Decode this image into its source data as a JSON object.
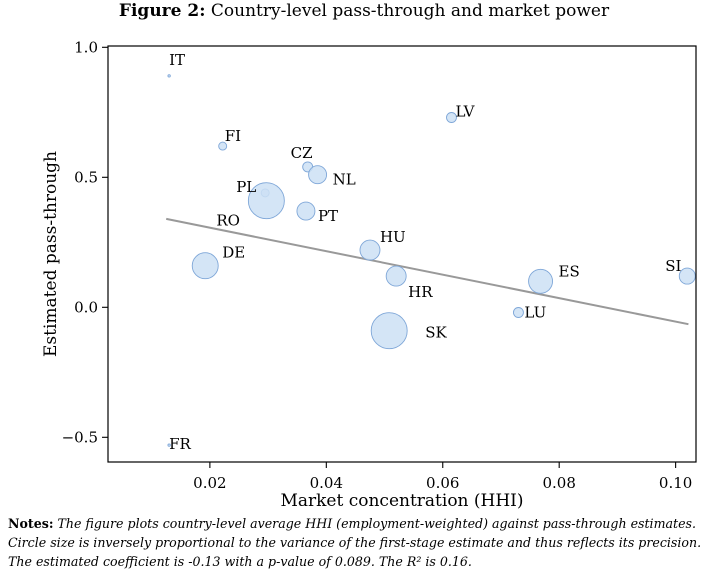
{
  "figure": {
    "title_prefix": "Figure 2:",
    "title": "Country-level pass-through and market power"
  },
  "chart_data": {
    "type": "scatter",
    "xlabel": "Market concentration (HHI)",
    "ylabel": "Estimated pass-through",
    "xlim": [
      0.0025,
      0.1035
    ],
    "ylim": [
      -0.595,
      1.005
    ],
    "xticks": [
      0.02,
      0.04,
      0.06,
      0.08,
      0.1
    ],
    "xtick_labels": [
      "0.02",
      "0.04",
      "0.06",
      "0.08",
      "0.10"
    ],
    "yticks": [
      1.0,
      0.5,
      0.0,
      -0.5
    ],
    "ytick_labels": [
      "1.0",
      "0.5",
      "0.0",
      "−0.5"
    ],
    "grid": false,
    "point_color": "#cde1f5",
    "point_edge": "#7fa7d8",
    "fit_color": "#999999",
    "fit_line": {
      "x": [
        0.0125,
        0.1022
      ],
      "y": [
        0.34,
        -0.065
      ]
    },
    "points": [
      {
        "label": "IT",
        "x": 0.013,
        "y": 0.89,
        "size": 1
      },
      {
        "label": "FI",
        "x": 0.0222,
        "y": 0.62,
        "size": 4
      },
      {
        "label": "CZ",
        "x": 0.0368,
        "y": 0.54,
        "size": 5
      },
      {
        "label": "NL",
        "x": 0.0385,
        "y": 0.51,
        "size": 9
      },
      {
        "label": "PL",
        "x": 0.0295,
        "y": 0.44,
        "size": 4
      },
      {
        "label": "RO",
        "x": 0.0297,
        "y": 0.41,
        "size": 18
      },
      {
        "label": "PT",
        "x": 0.0365,
        "y": 0.37,
        "size": 9
      },
      {
        "label": "LV",
        "x": 0.0615,
        "y": 0.73,
        "size": 5
      },
      {
        "label": "HU",
        "x": 0.0475,
        "y": 0.22,
        "size": 10
      },
      {
        "label": "DE",
        "x": 0.0192,
        "y": 0.16,
        "size": 13
      },
      {
        "label": "HR",
        "x": 0.052,
        "y": 0.12,
        "size": 10
      },
      {
        "label": "ES",
        "x": 0.0768,
        "y": 0.1,
        "size": 12
      },
      {
        "label": "SI",
        "x": 0.102,
        "y": 0.12,
        "size": 8
      },
      {
        "label": "LU",
        "x": 0.073,
        "y": -0.02,
        "size": 5
      },
      {
        "label": "SK",
        "x": 0.0508,
        "y": -0.09,
        "size": 18
      },
      {
        "label": "FR",
        "x": 0.013,
        "y": -0.53,
        "size": 1
      }
    ]
  },
  "notes": {
    "label": "Notes:",
    "text": "The figure plots country-level average HHI (employment-weighted) against pass-through estimates. Circle size is inversely proportional to the variance of the first-stage estimate and thus reflects its precision. The estimated coefficient is -0.13 with a p-value of 0.089. The R² is 0.16."
  }
}
